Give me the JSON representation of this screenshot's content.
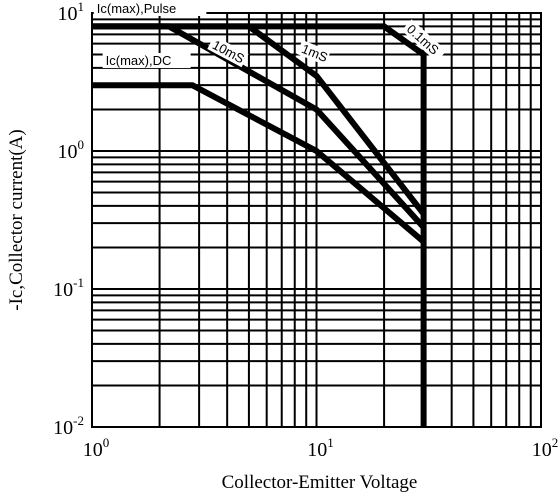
{
  "chart_data": {
    "type": "line",
    "xlabel": "Collector-Emitter Voltage",
    "ylabel": "-Ic,Collector current(A)",
    "xscale": "log",
    "yscale": "log",
    "xlim": [
      1,
      100
    ],
    "ylim": [
      0.01,
      10
    ],
    "grid": true,
    "x_ticks": [
      {
        "base": "10",
        "exp": "0",
        "value": 1
      },
      {
        "base": "10",
        "exp": "1",
        "value": 10
      },
      {
        "base": "10",
        "exp": "2",
        "value": 100
      }
    ],
    "y_ticks": [
      {
        "base": "10",
        "exp": "1",
        "value": 10
      },
      {
        "base": "10",
        "exp": "0",
        "value": 1
      },
      {
        "base": "10",
        "exp": "-1",
        "value": 0.1
      },
      {
        "base": "10",
        "exp": "-2",
        "value": 0.01
      }
    ],
    "series": [
      {
        "name": "0.1mS",
        "points": [
          [
            1,
            8
          ],
          [
            20,
            8
          ],
          [
            30,
            5
          ],
          [
            30,
            0.01
          ]
        ]
      },
      {
        "name": "1mS",
        "points": [
          [
            1,
            8
          ],
          [
            5,
            8
          ],
          [
            10,
            3.5
          ],
          [
            30,
            0.35
          ]
        ]
      },
      {
        "name": "10mS",
        "points": [
          [
            1,
            8
          ],
          [
            2.2,
            8
          ],
          [
            10,
            2
          ],
          [
            30,
            0.28
          ]
        ]
      },
      {
        "name": "DC",
        "points": [
          [
            1,
            3
          ],
          [
            2.8,
            3
          ],
          [
            10,
            1
          ],
          [
            30,
            0.22
          ]
        ]
      }
    ],
    "annotations": [
      {
        "text": "Ic(max),Pulse",
        "x": 1.05,
        "y": 10
      },
      {
        "text": "Ic(max),DC",
        "x": 1.15,
        "y": 4.2
      },
      {
        "text": "10mS",
        "x": 3.4,
        "y": 5.6
      },
      {
        "text": "1mS",
        "x": 8.5,
        "y": 5.2
      },
      {
        "text": "0.1mS",
        "x": 25,
        "y": 7.5
      }
    ]
  }
}
